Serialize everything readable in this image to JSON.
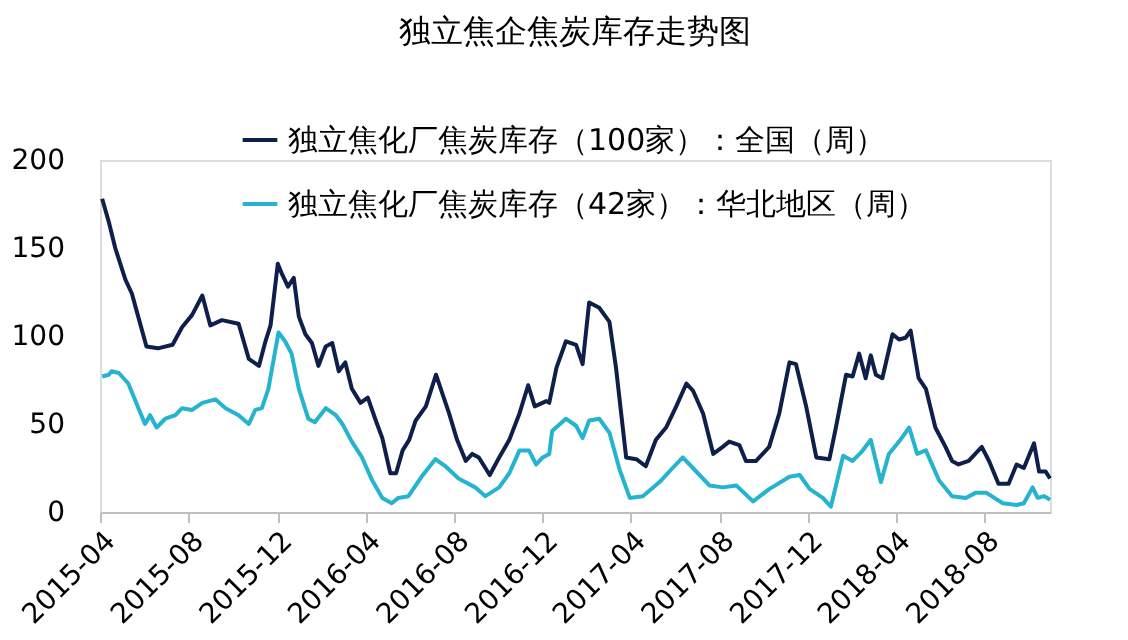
{
  "chart_data": {
    "type": "line",
    "title": "独立焦企焦炭库存走势图",
    "xlim": [
      "2015-04-01",
      "2018-10-31"
    ],
    "xticks": [
      "2015-04",
      "2015-08",
      "2015-12",
      "2016-04",
      "2016-08",
      "2016-12",
      "2017-04",
      "2017-08",
      "2017-12",
      "2018-04",
      "2018-08"
    ],
    "ylim": [
      0,
      200
    ],
    "yticks": [
      0,
      50,
      100,
      150,
      200
    ],
    "grid": false,
    "legend": "top",
    "marker": "none",
    "line_style": "solid",
    "series": [
      {
        "name": "独立焦化厂焦炭库存（100家）：全国（周）",
        "color": "#0d1f4a",
        "x": [
          "2015-04-04",
          "2015-04-13",
          "2015-04-22",
          "2015-05-06",
          "2015-05-15",
          "2015-05-21",
          "2015-06-04",
          "2015-06-20",
          "2015-07-10",
          "2015-07-23",
          "2015-08-06",
          "2015-08-20",
          "2015-08-31",
          "2015-09-16",
          "2015-10-09",
          "2015-10-16",
          "2015-10-23",
          "2015-11-06",
          "2015-11-15",
          "2015-11-22",
          "2015-12-02",
          "2015-12-08",
          "2015-12-16",
          "2015-12-24",
          "2015-12-31",
          "2016-01-09",
          "2016-01-18",
          "2016-01-27",
          "2016-02-06",
          "2016-02-15",
          "2016-02-24",
          "2016-03-04",
          "2016-03-13",
          "2016-03-25",
          "2016-04-04",
          "2016-04-15",
          "2016-04-24",
          "2016-05-05",
          "2016-05-13",
          "2016-05-22",
          "2016-05-31",
          "2016-06-09",
          "2016-06-23",
          "2016-07-07",
          "2016-07-16",
          "2016-07-25",
          "2016-08-05",
          "2016-08-17",
          "2016-08-26",
          "2016-09-04",
          "2016-09-19",
          "2016-10-02",
          "2016-10-16",
          "2016-10-30",
          "2016-11-11",
          "2016-11-20",
          "2016-12-06",
          "2016-12-10",
          "2016-12-20",
          "2017-01-02",
          "2017-01-16",
          "2017-01-25",
          "2017-02-03",
          "2017-02-17",
          "2017-03-03",
          "2017-03-12",
          "2017-03-26",
          "2017-04-09",
          "2017-04-22",
          "2017-05-06",
          "2017-05-20",
          "2017-06-03",
          "2017-06-17",
          "2017-06-26",
          "2017-07-10",
          "2017-07-24",
          "2017-08-06",
          "2017-08-15",
          "2017-08-29",
          "2017-09-07",
          "2017-09-21",
          "2017-10-09",
          "2017-10-23",
          "2017-11-06",
          "2017-11-15",
          "2017-11-29",
          "2017-12-13",
          "2017-12-31",
          "2018-01-09",
          "2018-01-23",
          "2018-02-01",
          "2018-02-10",
          "2018-02-19",
          "2018-02-26",
          "2018-03-05",
          "2018-03-14",
          "2018-03-28",
          "2018-04-06",
          "2018-04-15",
          "2018-04-22",
          "2018-05-03",
          "2018-05-13",
          "2018-05-26",
          "2018-06-09",
          "2018-06-18",
          "2018-06-27",
          "2018-07-11",
          "2018-07-29",
          "2018-08-08",
          "2018-08-21",
          "2018-09-04",
          "2018-09-15",
          "2018-09-25",
          "2018-10-09",
          "2018-10-16",
          "2018-10-25",
          "2018-10-31"
        ],
        "values": [
          178,
          165,
          150,
          132,
          124,
          115,
          94,
          93,
          95,
          105,
          112,
          123,
          106,
          109,
          107,
          97,
          87,
          83,
          97,
          106,
          141,
          135,
          128,
          133,
          111,
          101,
          96,
          83,
          94,
          96,
          80,
          85,
          70,
          62,
          65,
          52,
          42,
          22,
          22,
          35,
          41,
          52,
          60,
          78,
          67,
          56,
          41,
          29,
          33,
          31,
          21,
          31,
          41,
          56,
          72,
          60,
          63,
          62,
          82,
          97,
          95,
          84,
          119,
          116,
          108,
          82,
          31,
          30,
          26,
          41,
          48,
          60,
          73,
          69,
          56,
          33,
          37,
          40,
          38,
          29,
          29,
          37,
          56,
          85,
          84,
          60,
          31,
          30,
          48,
          78,
          77,
          90,
          76,
          89,
          78,
          76,
          101,
          98,
          99,
          103,
          76,
          70,
          48,
          37,
          29,
          27,
          29,
          37,
          29,
          16,
          16,
          27,
          25,
          39,
          23,
          23,
          19
        ]
      },
      {
        "name": "独立焦化厂焦炭库存（42家）：华北地区（周）",
        "color": "#26b3d0",
        "x": [
          "2015-04-04",
          "2015-04-13",
          "2015-04-17",
          "2015-04-27",
          "2015-05-10",
          "2015-05-24",
          "2015-06-02",
          "2015-06-09",
          "2015-06-18",
          "2015-06-30",
          "2015-07-14",
          "2015-07-23",
          "2015-08-06",
          "2015-08-20",
          "2015-09-07",
          "2015-09-21",
          "2015-10-09",
          "2015-10-23",
          "2015-11-01",
          "2015-11-10",
          "2015-11-19",
          "2015-12-03",
          "2015-12-12",
          "2015-12-21",
          "2015-12-31",
          "2016-01-13",
          "2016-01-22",
          "2016-02-06",
          "2016-02-20",
          "2016-02-29",
          "2016-03-13",
          "2016-03-27",
          "2016-04-10",
          "2016-04-24",
          "2016-05-07",
          "2016-05-16",
          "2016-05-30",
          "2016-06-17",
          "2016-07-06",
          "2016-07-20",
          "2016-08-07",
          "2016-08-30",
          "2016-09-13",
          "2016-10-02",
          "2016-10-16",
          "2016-10-30",
          "2016-11-12",
          "2016-11-22",
          "2016-12-01",
          "2016-12-10",
          "2016-12-14",
          "2017-01-02",
          "2017-01-16",
          "2017-01-25",
          "2017-02-03",
          "2017-02-17",
          "2017-03-03",
          "2017-03-17",
          "2017-03-31",
          "2017-04-18",
          "2017-05-11",
          "2017-05-29",
          "2017-06-12",
          "2017-06-26",
          "2017-07-19",
          "2017-08-06",
          "2017-08-25",
          "2017-09-17",
          "2017-10-09",
          "2017-11-06",
          "2017-11-20",
          "2017-12-04",
          "2017-12-22",
          "2018-01-02",
          "2018-01-19",
          "2018-02-01",
          "2018-02-13",
          "2018-02-26",
          "2018-03-12",
          "2018-03-23",
          "2018-04-06",
          "2018-04-20",
          "2018-05-01",
          "2018-05-13",
          "2018-05-31",
          "2018-06-18",
          "2018-07-07",
          "2018-07-21",
          "2018-08-04",
          "2018-08-27",
          "2018-09-15",
          "2018-09-25",
          "2018-10-07",
          "2018-10-14",
          "2018-10-23",
          "2018-10-31"
        ],
        "values": [
          77,
          78,
          80,
          79,
          73,
          59,
          50,
          55,
          48,
          53,
          55,
          59,
          58,
          62,
          64,
          59,
          55,
          50,
          58,
          59,
          70,
          102,
          97,
          90,
          70,
          53,
          51,
          59,
          55,
          50,
          40,
          31,
          18,
          8,
          5,
          8,
          9,
          20,
          30,
          26,
          19,
          14,
          9,
          14,
          22,
          35,
          35,
          27,
          31,
          33,
          46,
          53,
          49,
          42,
          52,
          53,
          45,
          24,
          8,
          9,
          17,
          25,
          31,
          25,
          15,
          14,
          15,
          6,
          13,
          20,
          21,
          13,
          8,
          3,
          32,
          29,
          34,
          41,
          17,
          33,
          40,
          48,
          33,
          35,
          18,
          9,
          8,
          11,
          11,
          5,
          4,
          5,
          14,
          8,
          9,
          7
        ]
      }
    ]
  }
}
